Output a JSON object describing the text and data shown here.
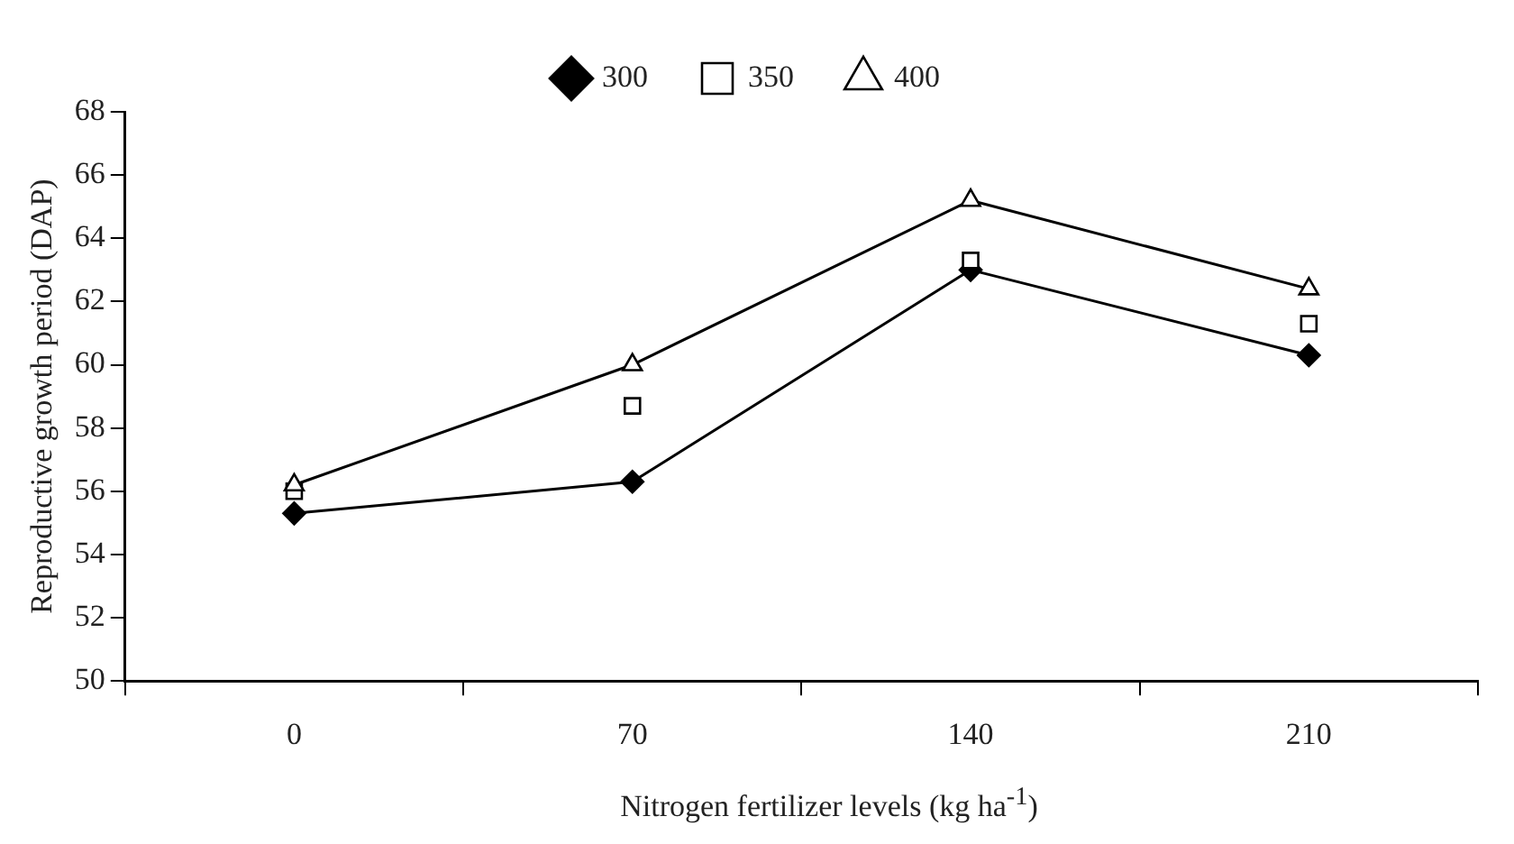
{
  "chart_data": {
    "type": "line",
    "xlabel": "Nitrogen fertilizer levels (kg ha$^{-1}$)",
    "ylabel": "Reproductive growth period (DAP)",
    "categories": [
      "0",
      "70",
      "140",
      "210"
    ],
    "series": [
      {
        "name": "300",
        "color": "#000000",
        "marker": "diamond",
        "values": [
          55.3,
          56.3,
          63.0,
          60.3
        ]
      },
      {
        "name": "350",
        "type": "scatter",
        "color": "#000000",
        "marker": "square",
        "values": [
          56.0,
          58.7,
          63.3,
          61.3
        ]
      },
      {
        "name": "400",
        "color": "#000000",
        "marker": "triangle",
        "values": [
          56.2,
          60.0,
          65.2,
          62.4
        ]
      }
    ],
    "ylim": [
      50,
      68
    ],
    "yticks": [
      50,
      52,
      54,
      56,
      58,
      60,
      62,
      64,
      66,
      68
    ],
    "grid": false,
    "legend": "top",
    "line_style": "solid"
  }
}
